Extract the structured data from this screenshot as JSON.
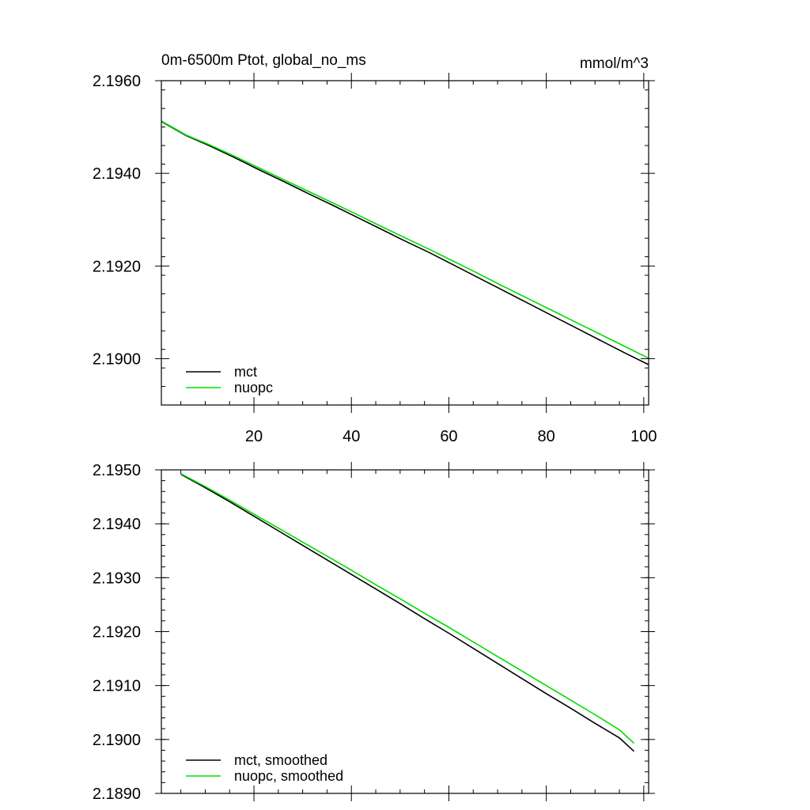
{
  "chart_data": [
    {
      "type": "line",
      "title": "0m-6500m Ptot, global_no_ms",
      "units": "mmol/m^3",
      "xlim": [
        1,
        101
      ],
      "ylim": [
        2.189,
        2.196
      ],
      "x_ticks": [
        20,
        40,
        60,
        80,
        100
      ],
      "x_tick_labels": [
        "20",
        "40",
        "60",
        "80",
        "100"
      ],
      "y_ticks": [
        2.19,
        2.192,
        2.194,
        2.196
      ],
      "y_tick_labels": [
        "2.1900",
        "2.1920",
        "2.1940",
        "2.1960"
      ],
      "legend_position": "bottom-left",
      "grid": false,
      "series": [
        {
          "name": "mct",
          "color": "#000000",
          "x": [
            1,
            6,
            11,
            16,
            21,
            26,
            31,
            36,
            41,
            46,
            51,
            56,
            61,
            66,
            71,
            76,
            81,
            86,
            91,
            96,
            101
          ],
          "y": [
            2.19512,
            2.19482,
            2.19459,
            2.19434,
            2.19408,
            2.19383,
            2.19357,
            2.19332,
            2.19306,
            2.1928,
            2.19254,
            2.19229,
            2.19202,
            2.19175,
            2.19148,
            2.19121,
            2.19094,
            2.19067,
            2.1904,
            2.19013,
            2.18987
          ]
        },
        {
          "name": "nuopc",
          "color": "#00dd00",
          "x": [
            1,
            6,
            11,
            16,
            21,
            26,
            31,
            36,
            41,
            46,
            51,
            56,
            61,
            66,
            71,
            76,
            81,
            86,
            91,
            96,
            101
          ],
          "y": [
            2.19513,
            2.19483,
            2.19461,
            2.19437,
            2.19412,
            2.19387,
            2.19362,
            2.19337,
            2.19312,
            2.19286,
            2.19261,
            2.19236,
            2.1921,
            2.19184,
            2.19157,
            2.19131,
            2.19105,
            2.19079,
            2.19053,
            2.19027,
            2.19001
          ]
        }
      ]
    },
    {
      "type": "line",
      "title": "",
      "xlim": [
        1,
        101
      ],
      "ylim": [
        2.189,
        2.195
      ],
      "x_ticks": [
        20,
        40,
        60,
        80,
        100
      ],
      "y_ticks": [
        2.189,
        2.19,
        2.191,
        2.192,
        2.193,
        2.194,
        2.195
      ],
      "y_tick_labels": [
        "2.1890",
        "2.1900",
        "2.1910",
        "2.1920",
        "2.1930",
        "2.1940",
        "2.1950"
      ],
      "legend_position": "bottom-left",
      "grid": false,
      "series": [
        {
          "name": "mct, smoothed",
          "color": "#000000",
          "x": [
            5,
            10,
            15,
            20,
            25,
            30,
            35,
            40,
            45,
            50,
            55,
            60,
            65,
            70,
            75,
            80,
            85,
            90,
            95,
            98
          ],
          "y": [
            2.19492,
            2.19467,
            2.19441,
            2.19414,
            2.19387,
            2.1936,
            2.19333,
            2.19306,
            2.19279,
            2.19252,
            2.19224,
            2.19197,
            2.19169,
            2.19141,
            2.19113,
            2.19085,
            2.19058,
            2.1903,
            2.19003,
            2.18978
          ]
        },
        {
          "name": "nuopc, smoothed",
          "color": "#00dd00",
          "x": [
            5,
            10,
            15,
            20,
            25,
            30,
            35,
            40,
            45,
            50,
            55,
            60,
            65,
            70,
            75,
            80,
            85,
            90,
            95,
            98
          ],
          "y": [
            2.19493,
            2.19469,
            2.19444,
            2.19418,
            2.19392,
            2.19366,
            2.1934,
            2.19314,
            2.19287,
            2.19261,
            2.19234,
            2.19208,
            2.19181,
            2.19154,
            2.19127,
            2.191,
            2.19073,
            2.19046,
            2.19018,
            2.18993
          ]
        }
      ]
    }
  ]
}
